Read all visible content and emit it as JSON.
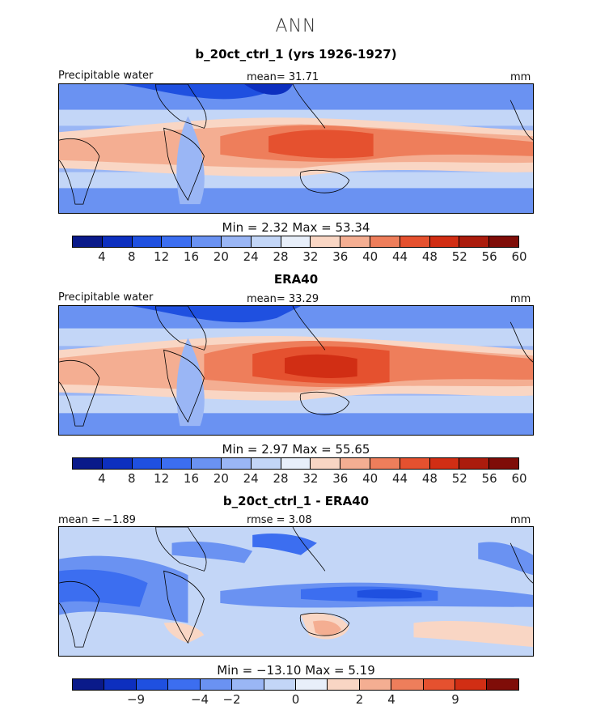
{
  "title": "ANN",
  "colors": {
    "abs_scale": [
      "#0a1a8a",
      "#0d2fbf",
      "#1f50e0",
      "#3c6ef0",
      "#6a92f2",
      "#9ab6f5",
      "#c3d6f7",
      "#e8effa",
      "#f9d6c4",
      "#f4ae92",
      "#ee7e5b",
      "#e5512f",
      "#d12e14",
      "#ab1c0d",
      "#7f0d08"
    ],
    "diff_scale": [
      "#0a1a8a",
      "#0d2fbf",
      "#1f50e0",
      "#3c6ef0",
      "#6a92f2",
      "#9ab6f5",
      "#c3d6f7",
      "#e8effa",
      "#f9d6c4",
      "#f4ae92",
      "#ee7e5b",
      "#e5512f",
      "#d12e14",
      "#7f0d08"
    ]
  },
  "panels": [
    {
      "title": "b_20ct_ctrl_1 (yrs 1926-1927)",
      "field_label": "Precipitable water",
      "mean_text": "mean=  31.71",
      "units": "mm",
      "minmax_text": "Min =     2.32  Max =   53.34",
      "min": 2.32,
      "max": 53.34,
      "mean": 31.71,
      "tick_labels": [
        "4",
        "8",
        "12",
        "16",
        "20",
        "24",
        "28",
        "32",
        "36",
        "40",
        "44",
        "48",
        "52",
        "56",
        "60"
      ]
    },
    {
      "title": "ERA40",
      "field_label": "Precipitable water",
      "mean_text": "mean=  33.29",
      "units": "mm",
      "minmax_text": "Min =     2.97  Max =   55.65",
      "min": 2.97,
      "max": 55.65,
      "mean": 33.29,
      "tick_labels": [
        "4",
        "8",
        "12",
        "16",
        "20",
        "24",
        "28",
        "32",
        "36",
        "40",
        "44",
        "48",
        "52",
        "56",
        "60"
      ]
    },
    {
      "title": "b_20ct_ctrl_1 - ERA40",
      "mean_text": "mean =  −1.89",
      "rmse_text": "rmse =    3.08",
      "units": "mm",
      "minmax_text": "Min = −13.10  Max =     5.19",
      "min": -13.1,
      "max": 5.19,
      "mean": -1.89,
      "rmse": 3.08,
      "tick_labels": [
        "−9",
        "−4",
        "−2",
        "0",
        "2",
        "4",
        "9"
      ]
    }
  ]
}
